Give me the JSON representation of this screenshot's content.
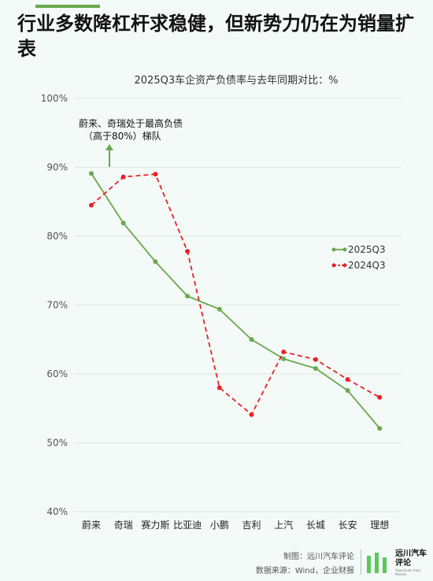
{
  "headline": "行业多数降杠杆求稳健，但新势力仍在为销量扩表",
  "footer": {
    "credit": "制图：远川汽车评论",
    "source": "数据来源：Wind，企业财报"
  },
  "logo": {
    "name": "远川汽车评论",
    "sub": "Yuanchuan Auto Review",
    "bar_color": "#5cc85a"
  },
  "colors": {
    "background": "#f3faf7",
    "accent": "#6aa84f",
    "series_2025": "#6aa84f",
    "series_2024": "#e8222a",
    "grid": "#dfe6e2"
  },
  "chart_data": {
    "type": "line",
    "title": "2025Q3车企资产负债率与去年同期对比：%",
    "categories": [
      "蔚来",
      "奇瑞",
      "赛力斯",
      "比亚迪",
      "小鹏",
      "吉利",
      "上汽",
      "长城",
      "长安",
      "理想"
    ],
    "ylim": [
      40,
      100
    ],
    "yticks": [
      "40%",
      "50%",
      "60%",
      "70%",
      "80%",
      "90%",
      "100%"
    ],
    "ytick_values": [
      40,
      50,
      60,
      70,
      80,
      90,
      100
    ],
    "grid": true,
    "legend_position": "right",
    "series": [
      {
        "name": "2025Q3",
        "style": "solid",
        "color": "#6aa84f",
        "values": [
          89.1,
          81.9,
          76.3,
          71.3,
          69.4,
          65.0,
          62.2,
          60.8,
          57.6,
          52.1
        ]
      },
      {
        "name": "2024Q3",
        "style": "dashed",
        "color": "#e8222a",
        "values": [
          84.5,
          88.6,
          89.0,
          77.8,
          58.0,
          54.1,
          63.2,
          62.1,
          59.2,
          56.6
        ]
      }
    ],
    "annotation": {
      "lines": [
        "蔚来、奇瑞处于最高负债",
        "（高于80%）梯队"
      ],
      "arrow": "up",
      "arrow_color": "#6aa84f"
    }
  }
}
